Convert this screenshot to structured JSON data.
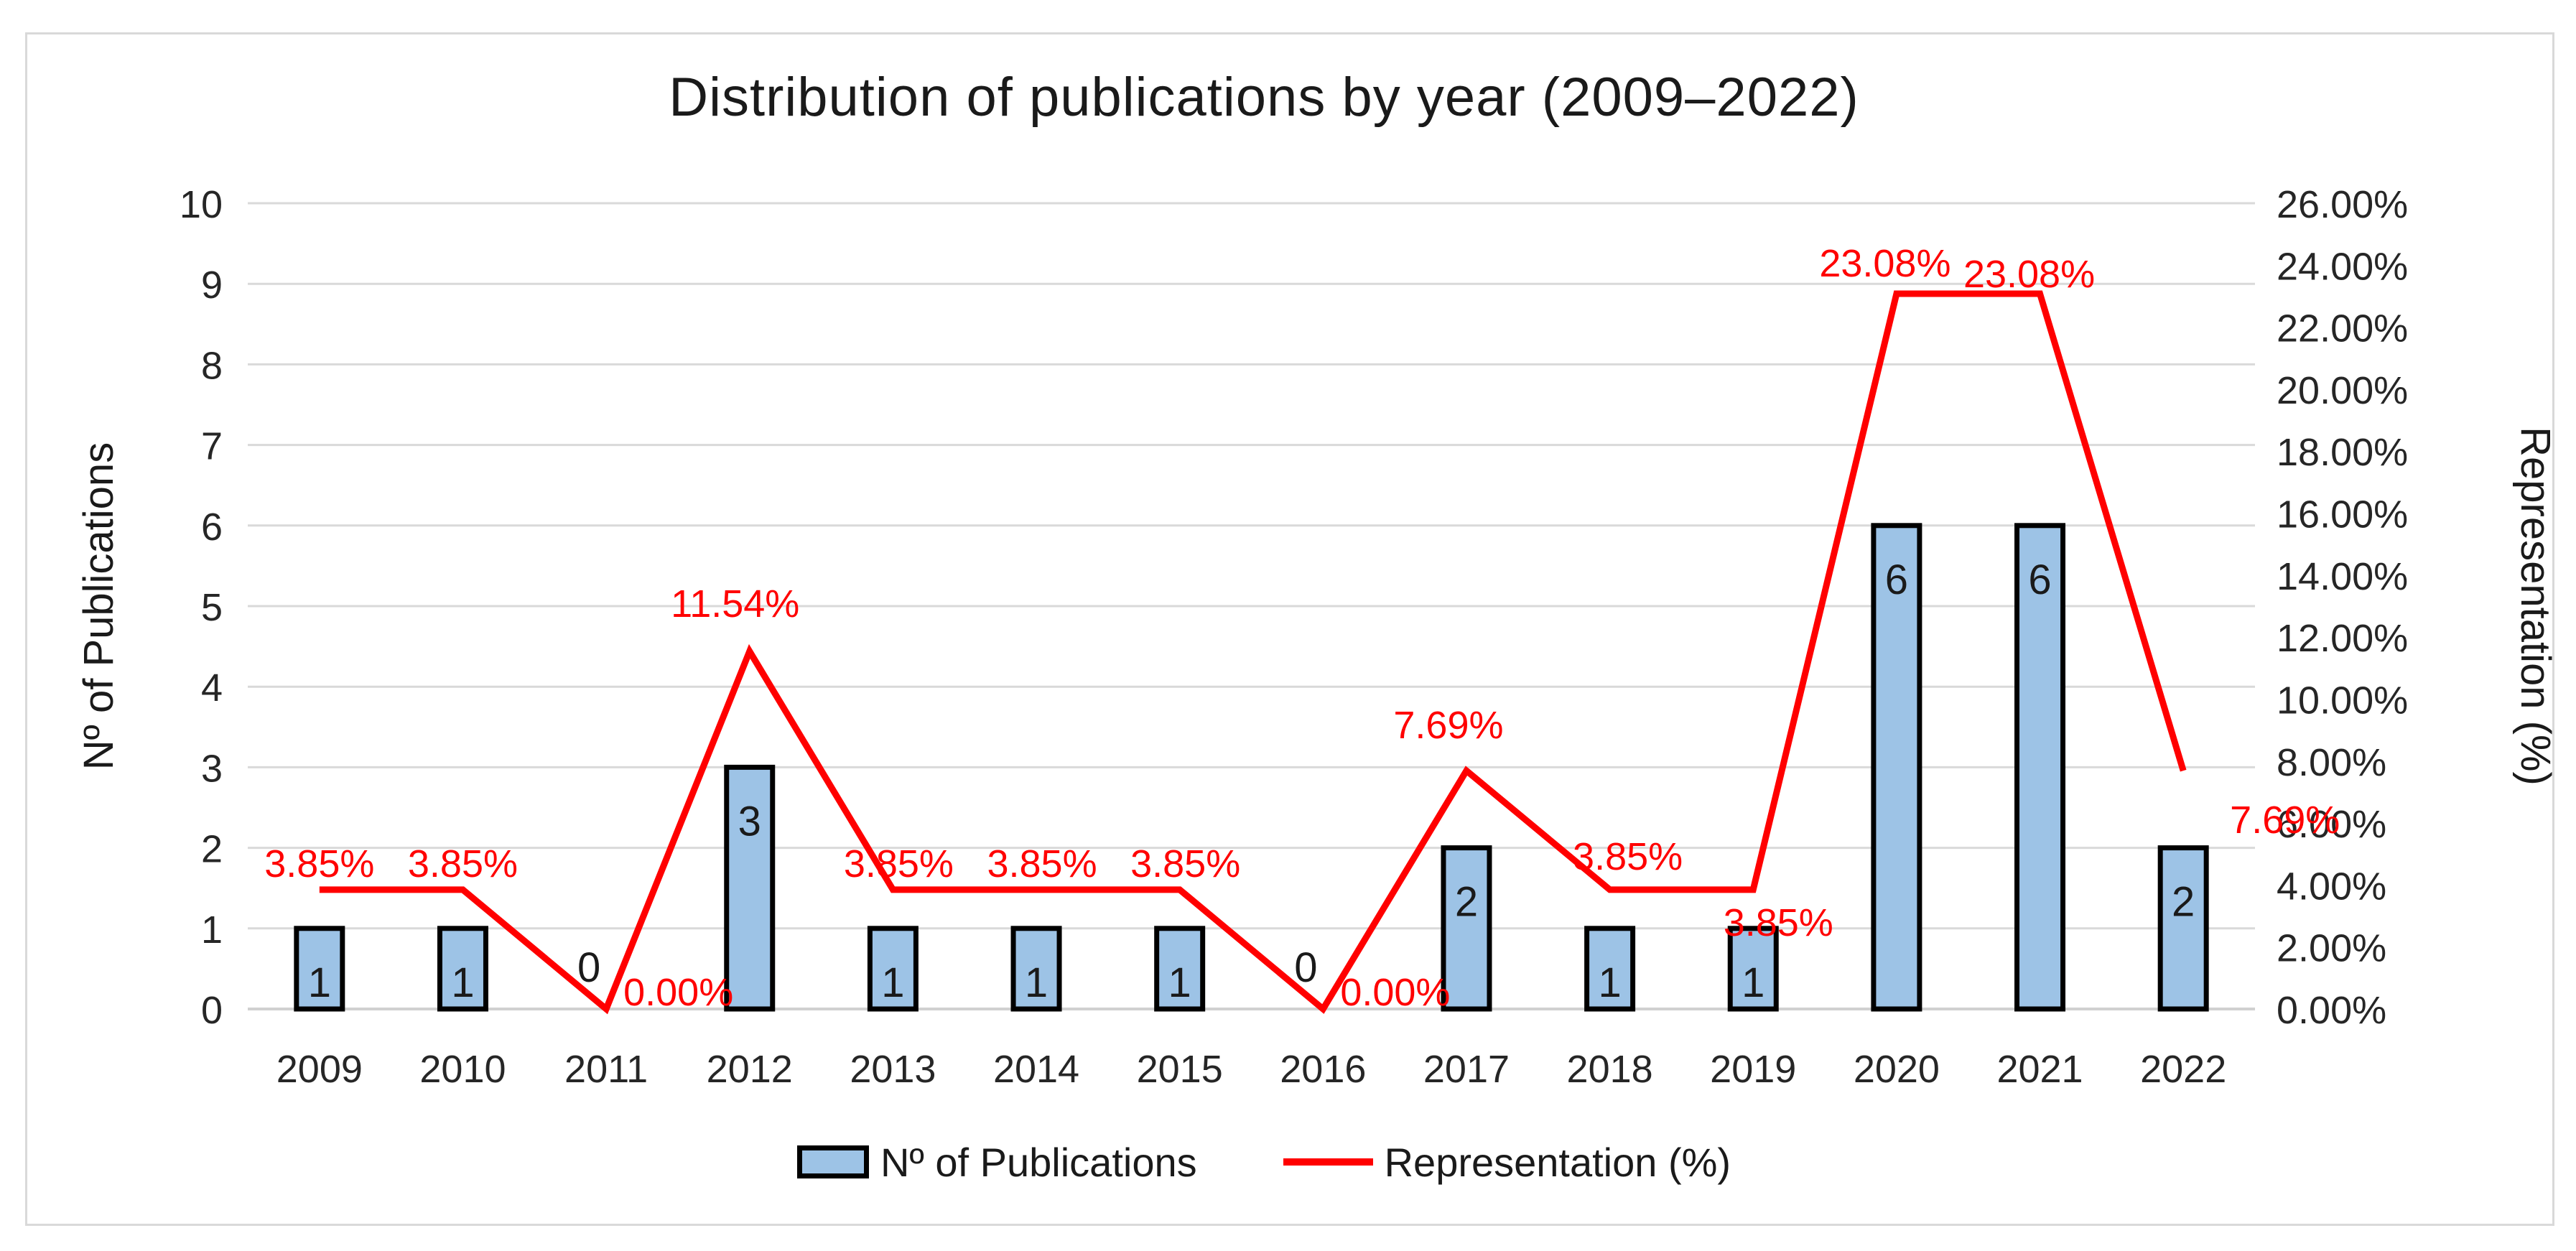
{
  "chart_data": {
    "type": "combo-bar-line",
    "title": "Distribution of publications by year (2009–2022)",
    "categories": [
      "2009",
      "2010",
      "2011",
      "2012",
      "2013",
      "2014",
      "2015",
      "2016",
      "2017",
      "2018",
      "2019",
      "2020",
      "2021",
      "2022"
    ],
    "series": [
      {
        "name": "Nº of Publications",
        "type": "bar",
        "axis": "left",
        "values": [
          1,
          1,
          0,
          3,
          1,
          1,
          1,
          0,
          2,
          1,
          1,
          6,
          6,
          2
        ],
        "data_labels": [
          "1",
          "1",
          "0",
          "3",
          "1",
          "1",
          "1",
          "0",
          "2",
          "1",
          "1",
          "6",
          "6",
          "2"
        ]
      },
      {
        "name": "Representation (%)",
        "type": "line",
        "axis": "right",
        "values": [
          3.85,
          3.85,
          0,
          11.54,
          3.85,
          3.85,
          3.85,
          0,
          7.69,
          3.85,
          3.85,
          23.08,
          23.08,
          7.69
        ],
        "data_labels": [
          "3.85%",
          "3.85%",
          "0.00%",
          "11.54%",
          "3.85%",
          "3.85%",
          "3.85%",
          "0.00%",
          "7.69%",
          "3.85%",
          "3.85%",
          "23.08%",
          "23.08%",
          "7.69%"
        ]
      }
    ],
    "left_axis": {
      "title": "Nº of Publications",
      "min": 0,
      "max": 10,
      "step": 1,
      "tick_labels": [
        "0",
        "1",
        "2",
        "3",
        "4",
        "5",
        "6",
        "7",
        "8",
        "9",
        "10"
      ]
    },
    "right_axis": {
      "title": "Representation (%)",
      "min": 0,
      "max": 26,
      "step": 2,
      "tick_labels": [
        "0.00%",
        "2.00%",
        "4.00%",
        "6.00%",
        "8.00%",
        "10.00%",
        "12.00%",
        "14.00%",
        "16.00%",
        "18.00%",
        "20.00%",
        "22.00%",
        "24.00%",
        "26.00%"
      ]
    },
    "legend": {
      "position": "bottom",
      "items": [
        "Nº of Publications",
        "Representation (%)"
      ]
    },
    "grid": true
  },
  "colors": {
    "bar_fill": "#9DC3E6",
    "bar_border": "#000000",
    "line": "#FF0000",
    "label_red": "#FF0000",
    "grid": "#D9D9D9",
    "axis_line": "#D0D0D0",
    "text": "#1A1A1A",
    "tick_text": "#262626",
    "frame_border": "#D9D9D9",
    "background": "#FFFFFF"
  }
}
